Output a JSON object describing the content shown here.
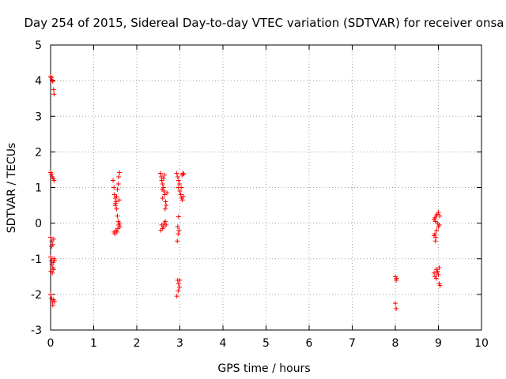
{
  "chart_data": {
    "type": "scatter",
    "title": "Day 254 of 2015, Sidereal Day-to-day VTEC variation (SDTVAR) for receiver onsa",
    "xlabel": "GPS time / hours",
    "ylabel": "SDTVAR / TECUs",
    "xlim": [
      0,
      10
    ],
    "ylim": [
      -3,
      5
    ],
    "x_ticks": [
      "0",
      "1",
      "2",
      "3",
      "4",
      "5",
      "6",
      "7",
      "8",
      "9",
      "10"
    ],
    "y_ticks": [
      "-3",
      "-2",
      "-1",
      "0",
      "1",
      "2",
      "3",
      "4",
      "5"
    ],
    "grid": true,
    "marker": "+",
    "color": "#ff0000",
    "series": [
      {
        "name": "sdtvar",
        "points": [
          [
            0.0,
            4.12
          ],
          [
            0.02,
            4.08
          ],
          [
            0.03,
            4.02
          ],
          [
            0.05,
            3.98
          ],
          [
            0.07,
            3.75
          ],
          [
            0.08,
            3.62
          ],
          [
            0.0,
            1.42
          ],
          [
            0.02,
            1.38
          ],
          [
            0.04,
            1.3
          ],
          [
            0.06,
            1.25
          ],
          [
            0.08,
            1.2
          ],
          [
            0.0,
            -0.4
          ],
          [
            0.03,
            -0.5
          ],
          [
            0.05,
            -0.6
          ],
          [
            0.07,
            -0.45
          ],
          [
            0.02,
            -0.65
          ],
          [
            0.0,
            -0.95
          ],
          [
            0.02,
            -1.05
          ],
          [
            0.03,
            -1.15
          ],
          [
            0.05,
            -1.25
          ],
          [
            0.06,
            -1.1
          ],
          [
            0.08,
            -1.0
          ],
          [
            0.01,
            -1.35
          ],
          [
            0.04,
            -1.4
          ],
          [
            0.07,
            -1.3
          ],
          [
            0.09,
            -1.05
          ],
          [
            0.0,
            -2.0
          ],
          [
            0.02,
            -2.1
          ],
          [
            0.04,
            -2.2
          ],
          [
            0.05,
            -2.3
          ],
          [
            0.07,
            -2.15
          ],
          [
            0.09,
            -2.2
          ],
          [
            1.45,
            1.2
          ],
          [
            1.47,
            1.0
          ],
          [
            1.48,
            0.8
          ],
          [
            1.5,
            0.7
          ],
          [
            1.52,
            0.6
          ],
          [
            1.5,
            0.5
          ],
          [
            1.53,
            0.4
          ],
          [
            1.55,
            0.2
          ],
          [
            1.57,
            0.05
          ],
          [
            1.58,
            -0.05
          ],
          [
            1.56,
            -0.15
          ],
          [
            1.54,
            -0.25
          ],
          [
            1.52,
            -0.2
          ],
          [
            1.49,
            -0.3
          ],
          [
            1.47,
            -0.25
          ],
          [
            1.6,
            0.0
          ],
          [
            1.58,
            1.3
          ],
          [
            1.6,
            1.42
          ],
          [
            1.57,
            1.1
          ],
          [
            1.55,
            0.95
          ],
          [
            1.53,
            0.75
          ],
          [
            1.51,
            0.55
          ],
          [
            1.59,
            0.65
          ],
          [
            1.61,
            -0.1
          ],
          [
            2.55,
            1.4
          ],
          [
            2.57,
            1.3
          ],
          [
            2.58,
            1.2
          ],
          [
            2.6,
            1.1
          ],
          [
            2.62,
            1.0
          ],
          [
            2.63,
            0.9
          ],
          [
            2.65,
            0.8
          ],
          [
            2.6,
            0.7
          ],
          [
            2.67,
            0.6
          ],
          [
            2.68,
            0.5
          ],
          [
            2.66,
            0.4
          ],
          [
            2.64,
            1.35
          ],
          [
            2.62,
            1.25
          ],
          [
            2.59,
            0.95
          ],
          [
            2.7,
            0.85
          ],
          [
            2.58,
            -0.05
          ],
          [
            2.6,
            -0.15
          ],
          [
            2.62,
            -0.1
          ],
          [
            2.64,
            0.0
          ],
          [
            2.66,
            0.05
          ],
          [
            2.68,
            -0.05
          ],
          [
            2.56,
            -0.2
          ],
          [
            2.93,
            1.4
          ],
          [
            2.95,
            1.3
          ],
          [
            2.97,
            1.2
          ],
          [
            2.99,
            1.1
          ],
          [
            2.96,
            1.0
          ],
          [
            3.0,
            0.9
          ],
          [
            3.02,
            0.8
          ],
          [
            3.04,
            0.7
          ],
          [
            3.06,
            0.65
          ],
          [
            3.08,
            0.75
          ],
          [
            3.05,
            1.35
          ],
          [
            3.07,
            1.4
          ],
          [
            3.09,
            1.38
          ],
          [
            3.03,
            1.0
          ],
          [
            2.97,
            0.18
          ],
          [
            2.95,
            -0.1
          ],
          [
            2.96,
            -0.3
          ],
          [
            2.94,
            -0.5
          ],
          [
            2.98,
            -0.2
          ],
          [
            2.95,
            -1.6
          ],
          [
            2.97,
            -1.7
          ],
          [
            2.99,
            -1.8
          ],
          [
            3.0,
            -1.6
          ],
          [
            2.96,
            -1.9
          ],
          [
            2.93,
            -2.05
          ],
          [
            8.0,
            -1.5
          ],
          [
            8.02,
            -1.6
          ],
          [
            8.03,
            -1.55
          ],
          [
            8.0,
            -2.25
          ],
          [
            8.02,
            -2.4
          ],
          [
            8.9,
            0.1
          ],
          [
            8.92,
            0.15
          ],
          [
            8.95,
            0.2
          ],
          [
            8.97,
            0.25
          ],
          [
            9.0,
            0.3
          ],
          [
            8.93,
            0.05
          ],
          [
            8.98,
            0.0
          ],
          [
            9.02,
            -0.05
          ],
          [
            9.0,
            -0.1
          ],
          [
            8.96,
            -0.2
          ],
          [
            8.92,
            -0.3
          ],
          [
            8.9,
            -0.35
          ],
          [
            8.94,
            -0.4
          ],
          [
            8.93,
            -0.5
          ],
          [
            9.03,
            0.2
          ],
          [
            8.9,
            -1.4
          ],
          [
            8.92,
            -1.5
          ],
          [
            8.95,
            -1.3
          ],
          [
            8.97,
            -1.4
          ],
          [
            9.0,
            -1.45
          ],
          [
            9.02,
            -1.25
          ],
          [
            8.95,
            -1.55
          ],
          [
            8.98,
            -1.35
          ],
          [
            9.02,
            -1.7
          ],
          [
            9.04,
            -1.75
          ]
        ]
      }
    ]
  }
}
